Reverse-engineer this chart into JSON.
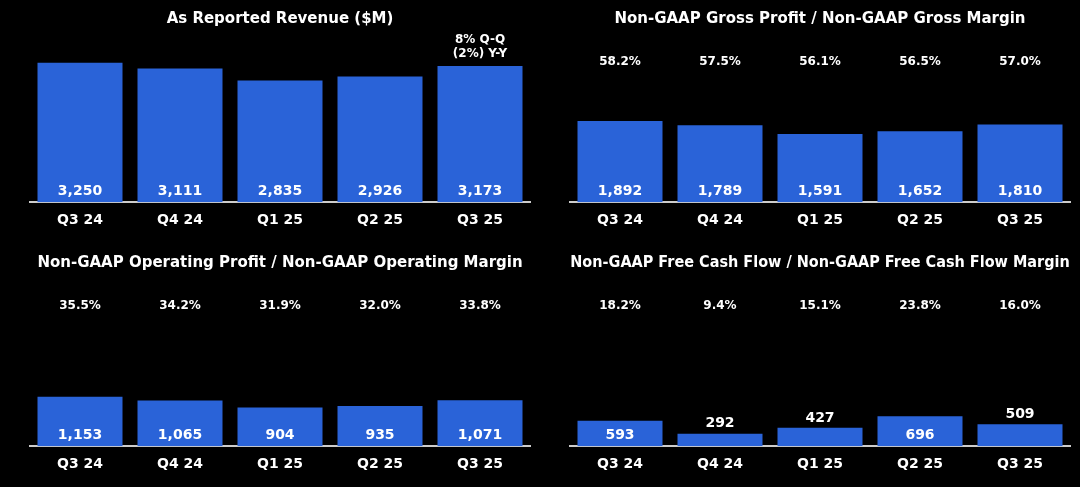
{
  "chart_data": [
    {
      "type": "bar",
      "title": "As Reported Revenue ($M)",
      "categories": [
        "Q3 24",
        "Q4 24",
        "Q1 25",
        "Q2 25",
        "Q3 25"
      ],
      "values": [
        3250,
        3111,
        2835,
        2926,
        3173
      ],
      "value_labels": [
        "3,250",
        "3,111",
        "2,835",
        "2,926",
        "3,173"
      ],
      "color": "#2a63d8",
      "annotations": [
        "8% Q-Q\n(2%) Y-Y"
      ]
    },
    {
      "type": "bar",
      "title": "Non-GAAP Gross Profit / Non-GAAP Gross Margin",
      "categories": [
        "Q3 24",
        "Q4 24",
        "Q1 25",
        "Q2 25",
        "Q3 25"
      ],
      "values": [
        1892,
        1789,
        1591,
        1652,
        1810
      ],
      "value_labels": [
        "1,892",
        "1,789",
        "1,591",
        "1,652",
        "1,810"
      ],
      "color": "#2a63d8",
      "annotations": [
        "58.2%",
        "57.5%",
        "56.1%",
        "56.5%",
        "57.0%"
      ]
    },
    {
      "type": "bar",
      "title": "Non-GAAP Operating Profit / Non-GAAP Operating Margin",
      "categories": [
        "Q3 24",
        "Q4 24",
        "Q1 25",
        "Q2 25",
        "Q3 25"
      ],
      "values": [
        1153,
        1065,
        904,
        935,
        1071
      ],
      "value_labels": [
        "1,153",
        "1,065",
        "904",
        "935",
        "1,071"
      ],
      "color": "#2a63d8",
      "annotations": [
        "35.5%",
        "34.2%",
        "31.9%",
        "32.0%",
        "33.8%"
      ]
    },
    {
      "type": "bar",
      "title": "Non-GAAP Free Cash Flow / Non-GAAP Free Cash Flow Margin",
      "categories": [
        "Q3 24",
        "Q4 24",
        "Q1 25",
        "Q2 25",
        "Q3 25"
      ],
      "values": [
        593,
        292,
        427,
        696,
        509
      ],
      "value_labels": [
        "593",
        "292",
        "427",
        "696",
        "509"
      ],
      "color": "#2a63d8",
      "annotations": [
        "18.2%",
        "9.4%",
        "15.1%",
        "23.8%",
        "16.0%"
      ]
    }
  ]
}
